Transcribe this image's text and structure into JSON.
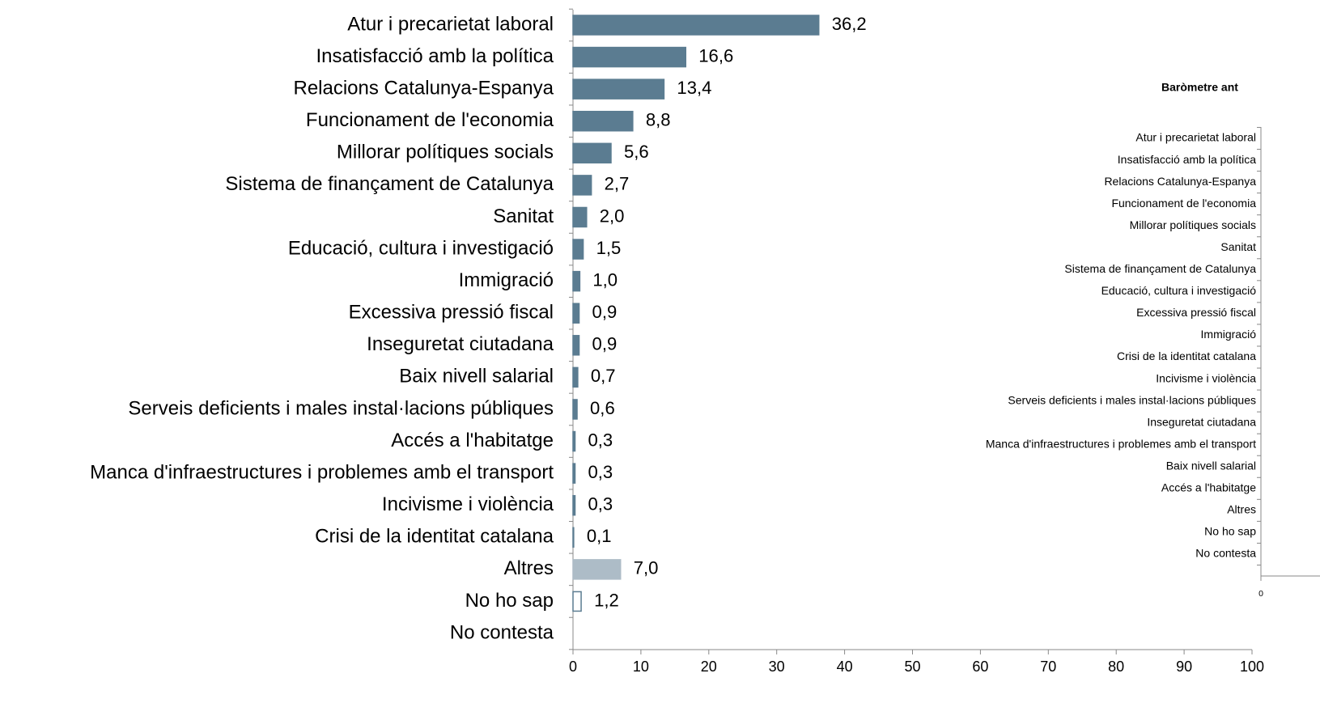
{
  "chart_data": [
    {
      "type": "barh",
      "categories": [
        "Atur i precarietat laboral",
        "Insatisfacció amb la política",
        "Relacions Catalunya-Espanya",
        "Funcionament de l'economia",
        "Millorar polítiques socials",
        "Sistema de finançament de Catalunya",
        "Sanitat",
        "Educació, cultura i investigació",
        "Immigració",
        "Excessiva pressió fiscal",
        "Inseguretat ciutadana",
        "Baix nivell salarial",
        "Serveis deficients i males instal·lacions públiques",
        "Accés a l'habitatge",
        "Manca d'infraestructures i problemes amb el transport",
        "Incivisme i violència",
        "Crisi de la identitat catalana",
        "Altres",
        "No ho sap",
        "No contesta"
      ],
      "values": [
        36.2,
        16.6,
        13.4,
        8.8,
        5.6,
        2.7,
        2.0,
        1.5,
        1.0,
        0.9,
        0.9,
        0.7,
        0.6,
        0.3,
        0.3,
        0.3,
        0.1,
        7.0,
        1.2,
        null
      ],
      "value_labels": [
        "36,2",
        "16,6",
        "13,4",
        "8,8",
        "5,6",
        "2,7",
        "2,0",
        "1,5",
        "1,0",
        "0,9",
        "0,9",
        "0,7",
        "0,6",
        "0,3",
        "0,3",
        "0,3",
        "0,1",
        "7,0",
        "1,2",
        null
      ],
      "colors": [
        "#5b7c91",
        "#5b7c91",
        "#5b7c91",
        "#5b7c91",
        "#5b7c91",
        "#5b7c91",
        "#5b7c91",
        "#5b7c91",
        "#5b7c91",
        "#5b7c91",
        "#5b7c91",
        "#5b7c91",
        "#5b7c91",
        "#5b7c91",
        "#5b7c91",
        "#5b7c91",
        "#5b7c91",
        "#adbcc7",
        "#ffffff",
        "#ffffff"
      ],
      "edgecolors": [
        "#5b7c91",
        "#5b7c91",
        "#5b7c91",
        "#5b7c91",
        "#5b7c91",
        "#5b7c91",
        "#5b7c91",
        "#5b7c91",
        "#5b7c91",
        "#5b7c91",
        "#5b7c91",
        "#5b7c91",
        "#5b7c91",
        "#5b7c91",
        "#5b7c91",
        "#5b7c91",
        "#5b7c91",
        "#adbcc7",
        "#5b7c91",
        "#5b7c91"
      ],
      "xlim": [
        0,
        100
      ],
      "xticks": [
        0,
        10,
        20,
        30,
        40,
        50,
        60,
        70,
        80,
        90,
        100
      ]
    },
    {
      "type": "barh",
      "title": "Baròmetre ant",
      "categories": [
        "Atur i precarietat laboral",
        "Insatisfacció amb la política",
        "Relacions Catalunya-Espanya",
        "Funcionament de l'economia",
        "Millorar polítiques socials",
        "Sanitat",
        "Sistema de finançament de Catalunya",
        "Educació, cultura i investigació",
        "Excessiva pressió fiscal",
        "Immigració",
        "Crisi de la identitat catalana",
        "Incivisme i violència",
        "Serveis deficients i males instal·lacions públiques",
        "Inseguretat ciutadana",
        "Manca d'infraestructures i problemes amb el transport",
        "Baix nivell salarial",
        "Accés a l'habitatge",
        "Altres",
        "No ho sap",
        "No contesta"
      ],
      "xticks": [
        0
      ]
    }
  ]
}
